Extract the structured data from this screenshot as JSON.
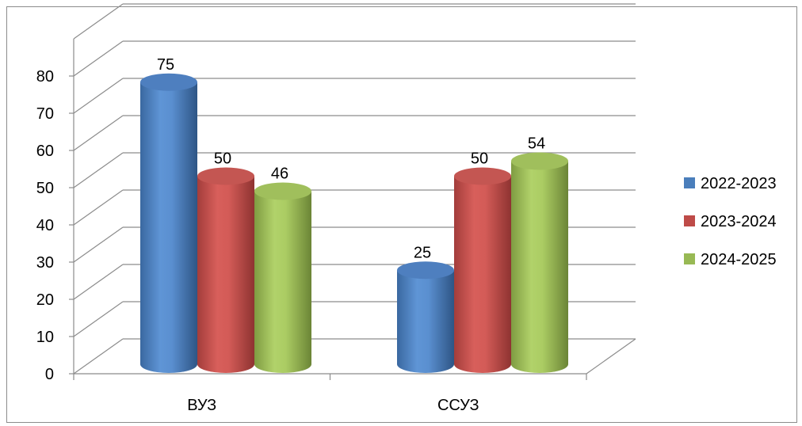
{
  "chart_data": {
    "type": "bar",
    "style": "3d-cylinder",
    "categories": [
      "ВУЗ",
      "ССУЗ"
    ],
    "series": [
      {
        "name": "2022-2023",
        "values": [
          75,
          25
        ],
        "color": "#4a7ebb"
      },
      {
        "name": "2023-2024",
        "values": [
          50,
          50
        ],
        "color": "#be4b48"
      },
      {
        "name": "2024-2025",
        "values": [
          46,
          54
        ],
        "color": "#98b954"
      }
    ],
    "yticks": [
      "0",
      "10",
      "20",
      "30",
      "40",
      "50",
      "60",
      "70",
      "80"
    ],
    "ylim": [
      0,
      80
    ],
    "grid": true,
    "legend_position": "right",
    "data_labels": [
      [
        "75",
        "25"
      ],
      [
        "50",
        "50"
      ],
      [
        "46",
        "54"
      ]
    ]
  }
}
